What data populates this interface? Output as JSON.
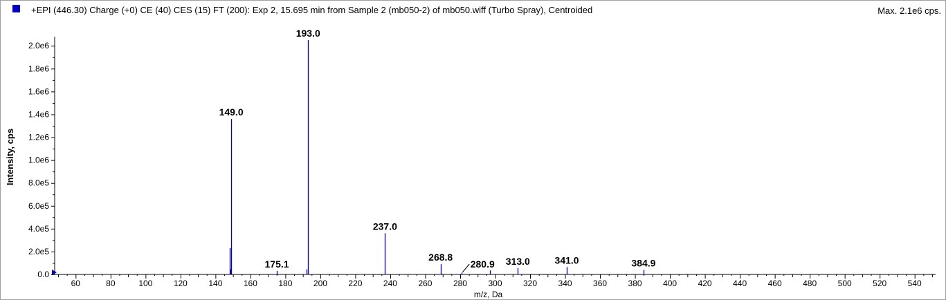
{
  "header": {
    "title": "+EPI (446.30) Charge (+0) CE (40) CES (15) FT (200): Exp 2, 15.695 min from Sample 2 (mb050-2) of mb050.wiff (Turbo Spray), Centroided",
    "max_label": "Max. 2.1e6 cps."
  },
  "colors": {
    "series": "#0000c8",
    "axis": "#000000"
  },
  "chart_data": {
    "type": "bar",
    "xlabel": "m/z, Da",
    "ylabel": "Intensity, cps",
    "xlim": [
      48,
      552
    ],
    "ylim": [
      0,
      2080000
    ],
    "x_ticks": [
      60,
      80,
      100,
      120,
      140,
      160,
      180,
      200,
      220,
      240,
      260,
      280,
      300,
      320,
      340,
      360,
      380,
      400,
      420,
      440,
      460,
      480,
      500,
      520,
      540
    ],
    "y_ticks": [
      {
        "value": 0,
        "label": "0.0"
      },
      {
        "value": 200000,
        "label": "2.0e5"
      },
      {
        "value": 400000,
        "label": "4.0e5"
      },
      {
        "value": 600000,
        "label": "6.0e5"
      },
      {
        "value": 800000,
        "label": "8.0e5"
      },
      {
        "value": 1000000,
        "label": "1.0e6"
      },
      {
        "value": 1200000,
        "label": "1.2e6"
      },
      {
        "value": 1400000,
        "label": "1.4e6"
      },
      {
        "value": 1600000,
        "label": "1.6e6"
      },
      {
        "value": 1800000,
        "label": "1.8e6"
      },
      {
        "value": 2000000,
        "label": "2.0e6"
      }
    ],
    "peaks": [
      {
        "mz": 148.2,
        "intensity": 230000
      },
      {
        "mz": 148.6,
        "intensity": 45000
      },
      {
        "mz": 149.0,
        "intensity": 1360000,
        "label": "149.0"
      },
      {
        "mz": 175.1,
        "intensity": 30000,
        "label": "175.1"
      },
      {
        "mz": 192.2,
        "intensity": 45000
      },
      {
        "mz": 193.0,
        "intensity": 2050000,
        "label": "193.0"
      },
      {
        "mz": 237.0,
        "intensity": 360000,
        "label": "237.0"
      },
      {
        "mz": 268.8,
        "intensity": 90000,
        "label": "268.8"
      },
      {
        "mz": 280.9,
        "intensity": 15000,
        "label": "280.9"
      },
      {
        "mz": 297.0,
        "intensity": 35000
      },
      {
        "mz": 313.0,
        "intensity": 55000,
        "label": "313.0"
      },
      {
        "mz": 341.0,
        "intensity": 65000,
        "label": "341.0"
      },
      {
        "mz": 384.9,
        "intensity": 40000,
        "label": "384.9"
      }
    ]
  }
}
